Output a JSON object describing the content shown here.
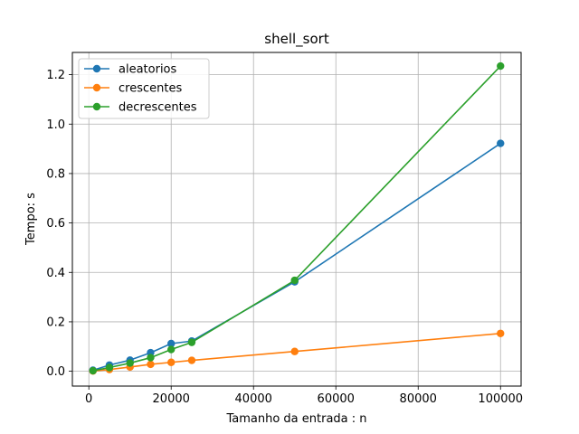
{
  "chart_data": {
    "type": "line",
    "title": "shell_sort",
    "xlabel": "Tamanho da entrada : n",
    "ylabel": "Tempo: s",
    "xlim": [
      -4000,
      105000
    ],
    "ylim": [
      -0.06,
      1.29
    ],
    "xticks": [
      0,
      20000,
      40000,
      60000,
      80000,
      100000
    ],
    "yticks": [
      0.0,
      0.2,
      0.4,
      0.6,
      0.8,
      1.0,
      1.2
    ],
    "grid": true,
    "legend_position": "top-left",
    "series": [
      {
        "name": "aleatorios",
        "color": "#1f77b4",
        "x": [
          1000,
          5000,
          10000,
          15000,
          20000,
          25000,
          50000,
          100000
        ],
        "y": [
          0.004,
          0.025,
          0.045,
          0.075,
          0.112,
          0.122,
          0.362,
          0.922
        ]
      },
      {
        "name": "crescentes",
        "color": "#ff7f0e",
        "x": [
          1000,
          5000,
          10000,
          15000,
          20000,
          25000,
          50000,
          100000
        ],
        "y": [
          0.001,
          0.007,
          0.017,
          0.028,
          0.036,
          0.044,
          0.08,
          0.153
        ]
      },
      {
        "name": "decrescentes",
        "color": "#2ca02c",
        "x": [
          1000,
          5000,
          10000,
          15000,
          20000,
          25000,
          50000,
          100000
        ],
        "y": [
          0.002,
          0.015,
          0.033,
          0.055,
          0.088,
          0.117,
          0.368,
          1.235
        ]
      }
    ]
  }
}
